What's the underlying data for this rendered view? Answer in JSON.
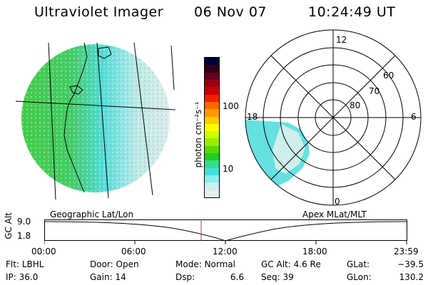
{
  "header": {
    "title": "Ultraviolet Imager",
    "date": "06 Nov 07",
    "time": "10:24:49 UT"
  },
  "colorbar": {
    "unit_label": "photon cm⁻²s⁻¹",
    "ticks": [
      "100",
      "10"
    ],
    "colors": [
      "#000033",
      "#33001a",
      "#660022",
      "#990011",
      "#cc0000",
      "#ee2200",
      "#ff6600",
      "#ff9900",
      "#ffcc00",
      "#ffff00",
      "#ccff00",
      "#99ee00",
      "#55dd00",
      "#22cc22",
      "#33dd88",
      "#44dddd",
      "#88eeee",
      "#cceeee",
      "#e6eeee"
    ]
  },
  "left_panel": {
    "label": "Geographic Lat/Lon"
  },
  "right_panel": {
    "label": "Apex MLat/MLT",
    "mlt_labels": [
      "12",
      "18",
      "6",
      "0"
    ],
    "mlat_labels": [
      "60",
      "70",
      "80"
    ]
  },
  "altitude_plot": {
    "ylabel": "GC Alt",
    "y_ticks": [
      "9.0",
      "1.8"
    ],
    "x_ticks": [
      "00:00",
      "06:00",
      "12:00",
      "18:00",
      "23:59"
    ],
    "current_time_marker": "10:24"
  },
  "status": {
    "row1": [
      {
        "label": "Flt:",
        "value": "LBHL"
      },
      {
        "label": "Door:",
        "value": "Open"
      },
      {
        "label": "Mode:",
        "value": "Normal"
      },
      {
        "label": "GC Alt:",
        "value": "4.6 Re"
      },
      {
        "label": "GLat:",
        "value": "−39.5"
      }
    ],
    "row2": [
      {
        "label": "IP:",
        "value": "36.0"
      },
      {
        "label": "Gain:",
        "value": "14"
      },
      {
        "label": "Dsp:",
        "value": "6.6"
      },
      {
        "label": "Seq:",
        "value": "39"
      },
      {
        "label": "GLon:",
        "value": "130.2"
      }
    ]
  }
}
